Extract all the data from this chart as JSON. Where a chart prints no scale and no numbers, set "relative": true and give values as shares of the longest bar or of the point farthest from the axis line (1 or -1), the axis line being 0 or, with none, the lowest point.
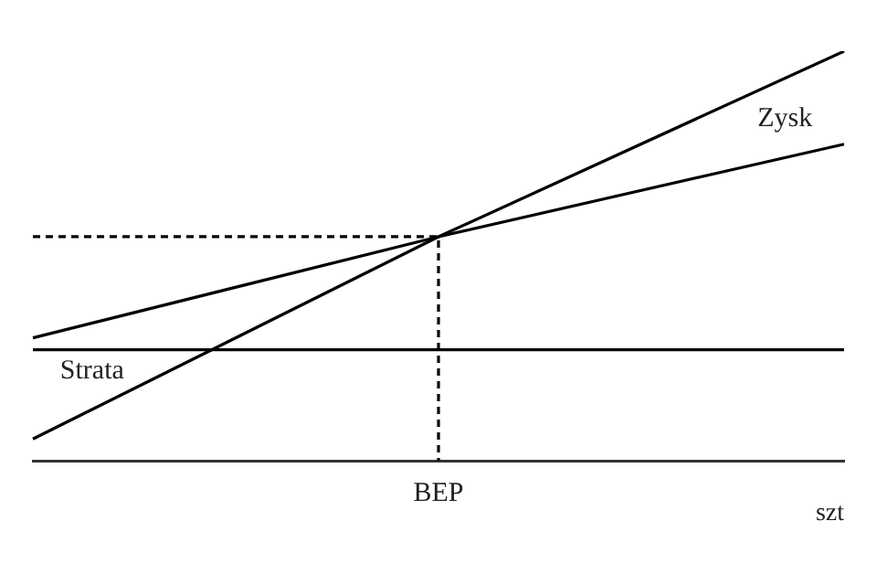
{
  "chart_data": {
    "type": "line",
    "relative": true,
    "xlabel": "szt",
    "tick_labels": "x",
    "legend": false,
    "marker": "none",
    "line_style": "solid",
    "categories": [
      null,
      null,
      null
    ],
    "series": [
      {
        "color": "#000000",
        "values": [
          0.053,
          0.547,
          1
        ]
      },
      {
        "color": "#000000",
        "values": [
          0.3,
          0.547,
          0.773
        ]
      },
      {
        "color": "#000000",
        "values": [
          0.271,
          0.271,
          0.271
        ]
      },
      {
        "type": "step",
        "color": "#000000",
        "line_style": "dashed",
        "values": [
          0.547,
          0,
          null
        ]
      }
    ],
    "annotations": [
      "Zysk",
      "Strata",
      "BEP"
    ]
  }
}
